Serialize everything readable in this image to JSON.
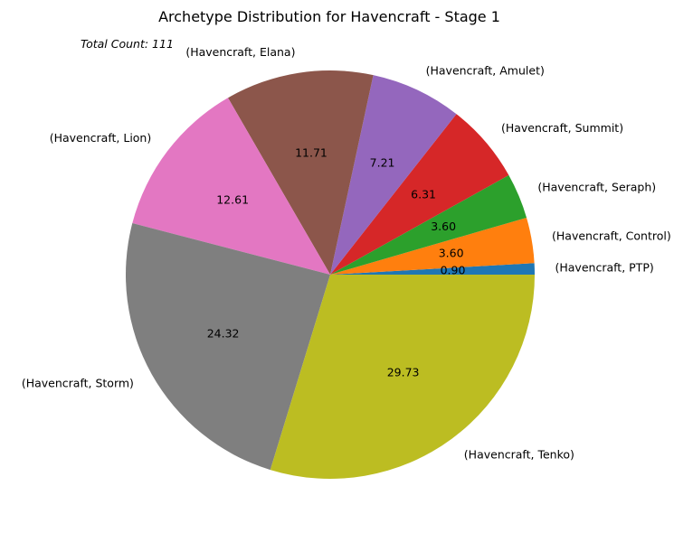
{
  "chart_data": {
    "type": "pie",
    "title": "Archetype Distribution for Havencraft - Stage 1",
    "annotation": "Total Count: 111",
    "slices": [
      {
        "label": "(Havencraft, PTP)",
        "value": 0.9,
        "pct_text": "0.90",
        "color": "#1f77b4"
      },
      {
        "label": "(Havencraft, Control)",
        "value": 3.6,
        "pct_text": "3.60",
        "color": "#ff7f0e"
      },
      {
        "label": "(Havencraft, Seraph)",
        "value": 3.6,
        "pct_text": "3.60",
        "color": "#2ca02c"
      },
      {
        "label": "(Havencraft, Summit)",
        "value": 6.31,
        "pct_text": "6.31",
        "color": "#d62728"
      },
      {
        "label": "(Havencraft, Amulet)",
        "value": 7.21,
        "pct_text": "7.21",
        "color": "#9467bd"
      },
      {
        "label": "(Havencraft, Elana)",
        "value": 11.71,
        "pct_text": "11.71",
        "color": "#8c564b"
      },
      {
        "label": "(Havencraft, Lion)",
        "value": 12.61,
        "pct_text": "12.61",
        "color": "#e377c2"
      },
      {
        "label": "(Havencraft, Storm)",
        "value": 24.32,
        "pct_text": "24.32",
        "color": "#7f7f7f"
      },
      {
        "label": "(Havencraft, Tenko)",
        "value": 29.73,
        "pct_text": "29.73",
        "color": "#bcbd22"
      }
    ]
  }
}
